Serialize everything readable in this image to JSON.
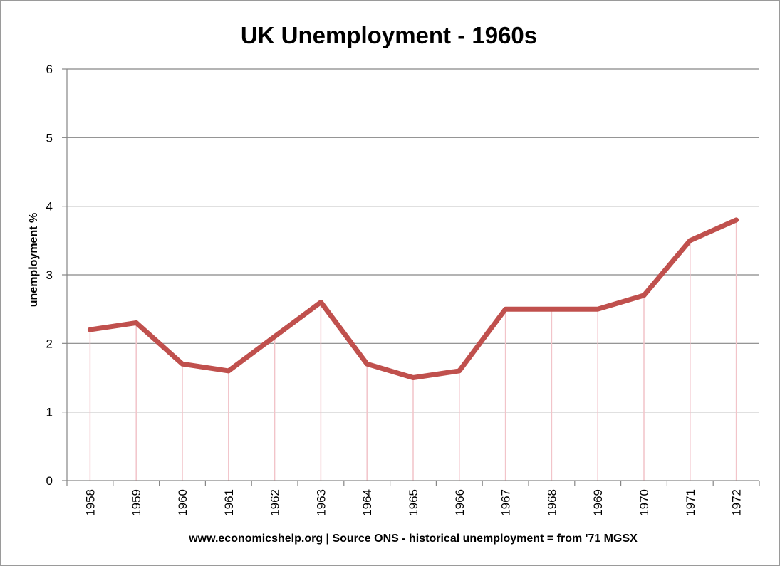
{
  "chart_data": {
    "type": "line",
    "title": "UK Unemployment - 1960s",
    "ylabel": "unemployment %",
    "xlabel": "www.economicshelp.org | Source ONS - historical unemployment = from '71 MGSX",
    "categories": [
      "1958",
      "1959",
      "1960",
      "1961",
      "1962",
      "1963",
      "1964",
      "1965",
      "1966",
      "1967",
      "1968",
      "1969",
      "1970",
      "1971",
      "1972"
    ],
    "series": [
      {
        "values": [
          2.2,
          2.3,
          1.7,
          1.6,
          2.1,
          2.6,
          1.7,
          1.5,
          1.6,
          2.5,
          2.5,
          2.5,
          2.7,
          3.5,
          3.8
        ]
      }
    ],
    "ylim": [
      0,
      6
    ],
    "yticks": [
      "0",
      "1",
      "2",
      "3",
      "4",
      "5",
      "6"
    ],
    "grid": true,
    "drop_lines": true,
    "legend": "none",
    "colors": {
      "line": "#c0504d",
      "drop_line": "#f2c4c9",
      "grid": "#868686",
      "axis": "#868686"
    }
  }
}
